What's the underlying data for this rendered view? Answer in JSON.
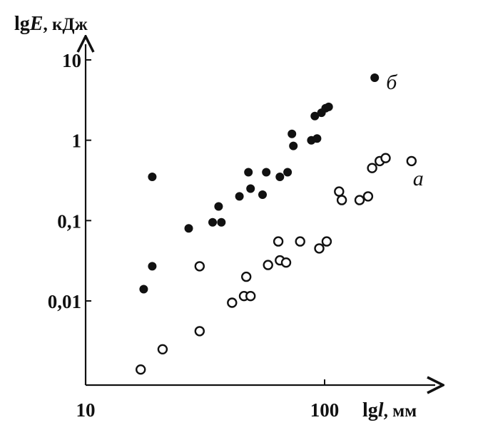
{
  "chart_data": {
    "type": "scatter",
    "x_scale": "log",
    "y_scale": "log",
    "xlim": [
      10,
      200
    ],
    "ylim": [
      0.0009,
      10
    ],
    "xlabel": {
      "prefix": "lg",
      "var": "l",
      "unit": ", мм"
    },
    "ylabel": {
      "prefix": "lg",
      "var": "E",
      "unit": ", кДж"
    },
    "x_ticks": [
      {
        "value": 10,
        "label": "10"
      },
      {
        "value": 100,
        "label": "100"
      }
    ],
    "y_ticks": [
      {
        "value": 10,
        "label": "10"
      },
      {
        "value": 1,
        "label": "1"
      },
      {
        "value": 0.1,
        "label": "0,1"
      },
      {
        "value": 0.01,
        "label": "0,01"
      }
    ],
    "grid": false,
    "series": [
      {
        "name": "б",
        "marker": "filled-circle",
        "color": "#111111",
        "points": [
          [
            17.5,
            0.014
          ],
          [
            19,
            0.027
          ],
          [
            19,
            0.35
          ],
          [
            27,
            0.08
          ],
          [
            34,
            0.095
          ],
          [
            36,
            0.15
          ],
          [
            37,
            0.095
          ],
          [
            44,
            0.2
          ],
          [
            48,
            0.4
          ],
          [
            49,
            0.25
          ],
          [
            55,
            0.21
          ],
          [
            57,
            0.4
          ],
          [
            65,
            0.35
          ],
          [
            70,
            0.4
          ],
          [
            73,
            1.2
          ],
          [
            74,
            0.85
          ],
          [
            88,
            1.0
          ],
          [
            91,
            2.0
          ],
          [
            93,
            1.05
          ],
          [
            97,
            2.2
          ],
          [
            101,
            2.5
          ],
          [
            104,
            2.6
          ],
          [
            162,
            6.0
          ]
        ]
      },
      {
        "name": "а",
        "marker": "open-circle",
        "color": "#111111",
        "points": [
          [
            17,
            0.0014
          ],
          [
            21,
            0.0025
          ],
          [
            30,
            0.0042
          ],
          [
            30,
            0.027
          ],
          [
            41,
            0.0095
          ],
          [
            46,
            0.0115
          ],
          [
            47,
            0.02
          ],
          [
            49,
            0.0115
          ],
          [
            58,
            0.028
          ],
          [
            64,
            0.055
          ],
          [
            65,
            0.032
          ],
          [
            69,
            0.03
          ],
          [
            79,
            0.055
          ],
          [
            95,
            0.045
          ],
          [
            102,
            0.055
          ],
          [
            115,
            0.23
          ],
          [
            118,
            0.18
          ],
          [
            140,
            0.18
          ],
          [
            152,
            0.2
          ],
          [
            158,
            0.45
          ],
          [
            170,
            0.55
          ],
          [
            180,
            0.6
          ],
          [
            231,
            0.55
          ]
        ]
      }
    ]
  }
}
